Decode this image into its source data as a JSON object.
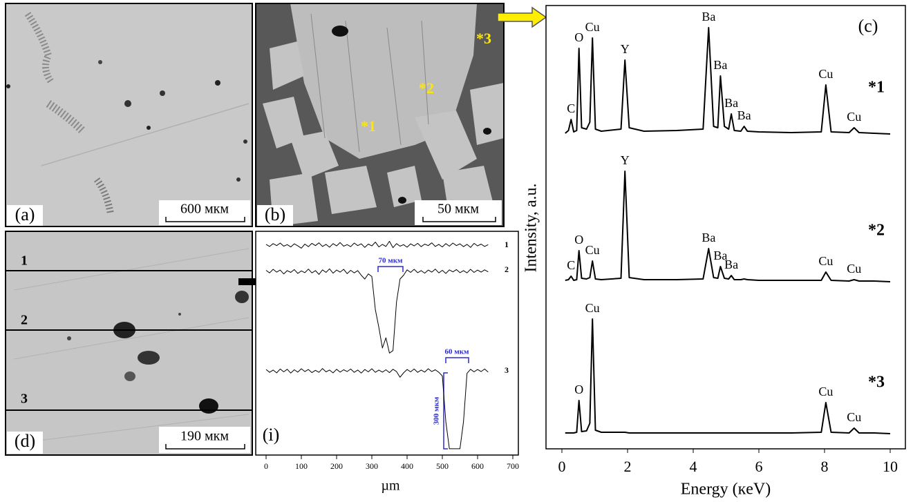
{
  "images": [
    {
      "label": "(a)",
      "scale_bar": "600 мкм"
    },
    {
      "label": "(b)",
      "scale_bar": "50 мкм",
      "points": [
        "*1",
        "*2",
        "*3"
      ]
    },
    {
      "label": "(d)",
      "scale_bar": "190 мкм",
      "lines": [
        "1",
        "2",
        "3"
      ]
    }
  ],
  "chart_data": [
    {
      "type": "line",
      "label": "(i)",
      "xlabel": "µm",
      "x": [
        0,
        10,
        20,
        30,
        40,
        50,
        60,
        70,
        80,
        90,
        100,
        110,
        120,
        130,
        140,
        150,
        160,
        170,
        180,
        190,
        200,
        210,
        220,
        230,
        240,
        250,
        260,
        270,
        280,
        290,
        300,
        310,
        320,
        330,
        340,
        350,
        360,
        370,
        380,
        390,
        400,
        410,
        420,
        430,
        440,
        450,
        460,
        470,
        480,
        490,
        500,
        510,
        520,
        530,
        540,
        550,
        560,
        570,
        580,
        590,
        600,
        610,
        620,
        630
      ],
      "xlim": [
        0,
        700
      ],
      "xticks": [
        0,
        100,
        200,
        300,
        400,
        500,
        600,
        700
      ],
      "series": [
        {
          "name": "1",
          "color": "#000000",
          "values": [
            3,
            -5,
            6,
            -2,
            8,
            -4,
            2,
            -7,
            5,
            -3,
            -12,
            4,
            -6,
            7,
            -2,
            9,
            -5,
            3,
            -8,
            6,
            -3,
            10,
            -4,
            2,
            -6,
            8,
            -2,
            5,
            -9,
            4,
            -3,
            12,
            -7,
            3,
            -5,
            15,
            -10,
            6,
            -4,
            2,
            -8,
            5,
            -3,
            7,
            -6,
            4,
            -2,
            9,
            -5,
            3,
            -7,
            6,
            -4,
            8,
            -2,
            5,
            -6,
            3,
            -9,
            7,
            -3,
            4,
            -5,
            2
          ]
        },
        {
          "name": "2",
          "color": "#000000",
          "values": [
            4,
            -6,
            8,
            -3,
            5,
            -10,
            3,
            -4,
            7,
            -8,
            2,
            -5,
            9,
            -6,
            3,
            -12,
            6,
            -4,
            10,
            -7,
            5,
            -3,
            8,
            -9,
            4,
            -6,
            3,
            -15,
            -30,
            -10,
            -20,
            -150,
            -220,
            -300,
            -260,
            -320,
            -310,
            -120,
            -30,
            -15,
            6,
            -4,
            8,
            -5,
            3,
            -7,
            5,
            -3,
            9,
            -6,
            4,
            -8,
            6,
            -2,
            7,
            -5,
            3,
            -6,
            8,
            -4,
            5,
            -3,
            6,
            -2
          ]
        },
        {
          "name": "3",
          "color": "#000000",
          "values": [
            5,
            -6,
            3,
            -8,
            7,
            -4,
            6,
            -9,
            4,
            -5,
            8,
            -3,
            5,
            -7,
            2,
            -6,
            9,
            -4,
            3,
            -8,
            6,
            -5,
            4,
            -3,
            7,
            -6,
            3,
            -9,
            5,
            -4,
            8,
            -6,
            3,
            -5,
            4,
            -7,
            6,
            -3,
            -25,
            -8,
            5,
            -4,
            7,
            -6,
            3,
            -5,
            8,
            -3,
            4,
            -6,
            -20,
            -200,
            -305,
            -305,
            -305,
            -305,
            -200,
            -10,
            6,
            -4,
            5,
            -3,
            7,
            -5
          ]
        }
      ],
      "annotations": [
        "70 мкм",
        "60 мкм",
        "300 мкм"
      ]
    },
    {
      "type": "line",
      "label": "(c)",
      "xlabel": "Energy (кeV)",
      "ylabel": "Intensity, a.u.",
      "x": [
        0.1,
        0.2,
        0.28,
        0.36,
        0.45,
        0.52,
        0.6,
        0.75,
        0.85,
        0.93,
        1.02,
        1.2,
        1.8,
        1.92,
        2.05,
        2.5,
        3.5,
        4.3,
        4.47,
        4.62,
        4.75,
        4.83,
        4.95,
        5.08,
        5.16,
        5.25,
        5.45,
        5.55,
        5.65,
        6.0,
        7.0,
        7.9,
        8.04,
        8.2,
        8.75,
        8.9,
        9.05,
        9.5,
        10.0
      ],
      "xlim": [
        0,
        10
      ],
      "xticks": [
        0,
        2,
        4,
        6,
        8,
        10
      ],
      "series": [
        {
          "name": "*1",
          "color": "#000000",
          "values": [
            2,
            6,
            22,
            4,
            6,
            125,
            10,
            8,
            18,
            140,
            8,
            5,
            8,
            108,
            10,
            5,
            6,
            8,
            155,
            12,
            10,
            85,
            12,
            8,
            30,
            6,
            5,
            12,
            5,
            4,
            3,
            4,
            72,
            4,
            3,
            10,
            3,
            2,
            1
          ],
          "point_labels": [
            null,
            null,
            "C",
            null,
            null,
            "O",
            null,
            null,
            null,
            "Cu",
            null,
            null,
            null,
            "Y",
            null,
            null,
            null,
            null,
            "Ba",
            null,
            null,
            "Ba",
            null,
            null,
            "Ba",
            null,
            null,
            "Ba",
            null,
            null,
            null,
            null,
            "Cu",
            null,
            null,
            "Cu",
            null,
            null,
            null
          ]
        },
        {
          "name": "*2",
          "color": "#000000",
          "values": [
            2,
            3,
            8,
            2,
            3,
            45,
            5,
            4,
            6,
            30,
            4,
            3,
            5,
            160,
            6,
            3,
            3,
            4,
            48,
            6,
            5,
            22,
            5,
            4,
            9,
            3,
            3,
            4,
            3,
            2,
            2,
            2,
            14,
            2,
            1,
            3,
            1,
            1,
            0
          ],
          "point_labels": [
            null,
            null,
            "C",
            null,
            null,
            "O",
            null,
            null,
            null,
            "Cu",
            null,
            null,
            null,
            "Y",
            null,
            null,
            null,
            null,
            "Ba",
            null,
            null,
            "Ba",
            null,
            null,
            "Ba",
            null,
            null,
            null,
            null,
            null,
            null,
            null,
            "Cu",
            null,
            null,
            "Cu",
            null,
            null,
            null
          ]
        },
        {
          "name": "*3",
          "color": "#000000",
          "values": [
            1,
            1,
            1,
            1,
            2,
            48,
            3,
            4,
            15,
            166,
            5,
            2,
            2,
            2,
            1,
            1,
            1,
            1,
            1,
            1,
            1,
            1,
            1,
            1,
            1,
            1,
            1,
            1,
            1,
            1,
            1,
            2,
            45,
            2,
            1,
            8,
            1,
            1,
            0
          ],
          "point_labels": [
            null,
            null,
            null,
            null,
            null,
            "O",
            null,
            null,
            null,
            "Cu",
            null,
            null,
            null,
            null,
            null,
            null,
            null,
            null,
            null,
            null,
            null,
            null,
            null,
            null,
            null,
            null,
            null,
            null,
            null,
            null,
            null,
            null,
            "Cu",
            null,
            null,
            "Cu",
            null,
            null,
            null
          ]
        }
      ]
    }
  ]
}
